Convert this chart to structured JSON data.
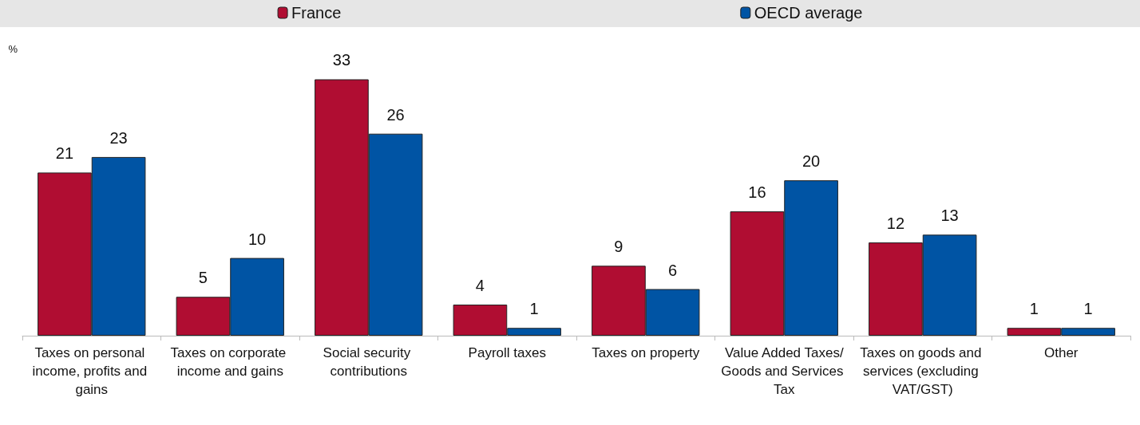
{
  "chart_data": {
    "type": "bar",
    "ylabel": "%",
    "categories": [
      "Taxes on personal income, profits and gains",
      "Taxes on corporate income and gains",
      "Social security contributions",
      "Payroll taxes",
      "Taxes on property",
      "Value Added Taxes/Goods and Services Tax",
      "Taxes on goods and services (excluding VAT/GST)",
      "Other"
    ],
    "series": [
      {
        "name": "France",
        "color": "#b00d32",
        "values": [
          21,
          5,
          33,
          4,
          9,
          16,
          12,
          1
        ]
      },
      {
        "name": "OECD average",
        "color": "#0054a4",
        "values": [
          23,
          10,
          26,
          1,
          6,
          20,
          13,
          1
        ]
      }
    ],
    "data_labels": true,
    "legend": "top",
    "grid": false
  }
}
